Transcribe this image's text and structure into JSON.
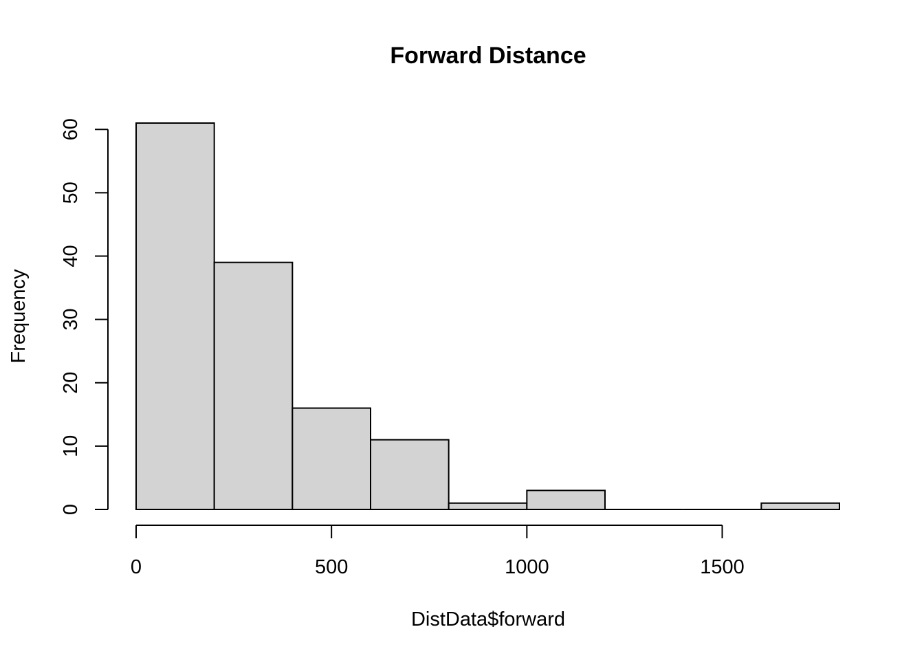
{
  "chart_data": {
    "type": "bar",
    "title": "Forward Distance",
    "xlabel": "DistData$forward",
    "ylabel": "Frequency",
    "bins": [
      {
        "start": 0,
        "end": 200,
        "count": 61
      },
      {
        "start": 200,
        "end": 400,
        "count": 39
      },
      {
        "start": 400,
        "end": 600,
        "count": 16
      },
      {
        "start": 600,
        "end": 800,
        "count": 11
      },
      {
        "start": 800,
        "end": 1000,
        "count": 1
      },
      {
        "start": 1000,
        "end": 1200,
        "count": 3
      },
      {
        "start": 1200,
        "end": 1400,
        "count": 0
      },
      {
        "start": 1400,
        "end": 1600,
        "count": 0
      },
      {
        "start": 1600,
        "end": 1800,
        "count": 1
      }
    ],
    "x_ticks": [
      0,
      500,
      1000,
      1500
    ],
    "y_ticks": [
      0,
      10,
      20,
      30,
      40,
      50,
      60
    ],
    "xlim": [
      0,
      1800
    ],
    "ylim": [
      0,
      61
    ],
    "bar_fill": "#d3d3d3",
    "bar_stroke": "#000000",
    "grid": false,
    "legend": "none"
  }
}
